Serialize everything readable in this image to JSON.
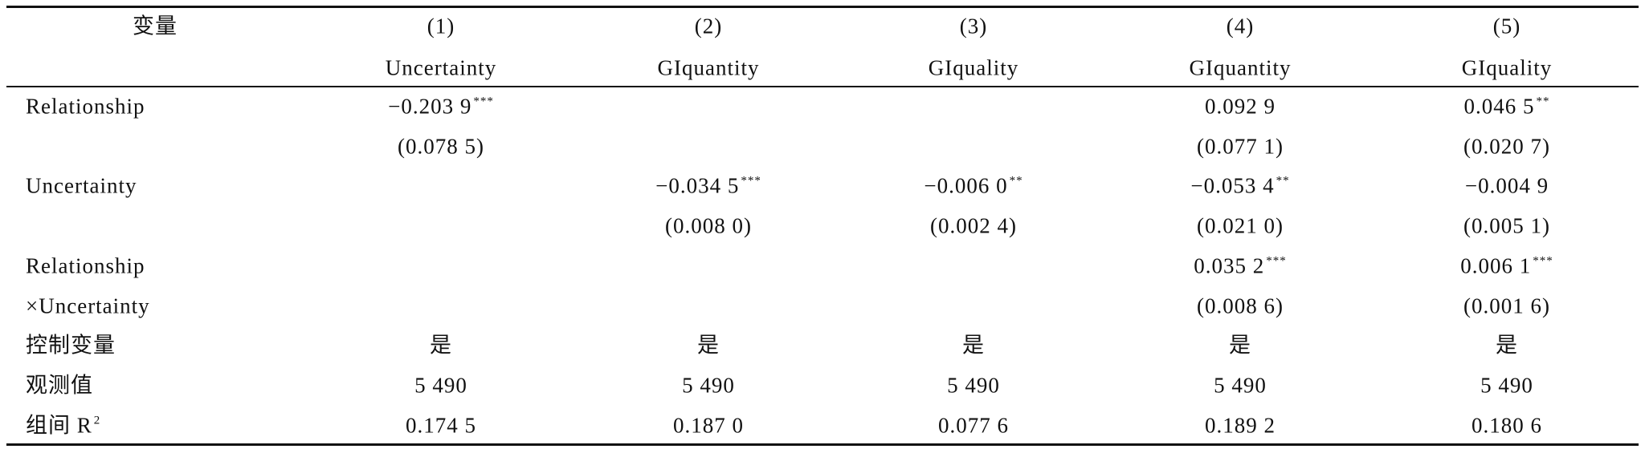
{
  "table": {
    "rows": [
      {
        "label": "变量",
        "cells": [
          "(1)",
          "(2)",
          "(3)",
          "(4)",
          "(5)"
        ]
      },
      {
        "label": null,
        "cells": [
          "Uncertainty",
          "GIquantity",
          "GIquality",
          "GIquantity",
          "GIquality"
        ]
      },
      {
        "label": "Relationship",
        "cells": [
          {
            "text": "−0.203 9",
            "sup": "***"
          },
          null,
          null,
          {
            "text": "0.092 9"
          },
          {
            "text": "0.046 5",
            "sup": "**"
          }
        ]
      },
      {
        "label": null,
        "cells": [
          "(0.078 5)",
          null,
          null,
          "(0.077 1)",
          "(0.020 7)"
        ]
      },
      {
        "label": "Uncertainty",
        "cells": [
          null,
          {
            "text": "−0.034 5",
            "sup": "***"
          },
          {
            "text": "−0.006 0",
            "sup": "**"
          },
          {
            "text": "−0.053 4",
            "sup": "**"
          },
          {
            "text": "−0.004 9"
          }
        ]
      },
      {
        "label": null,
        "cells": [
          null,
          "(0.008 0)",
          "(0.002 4)",
          "(0.021 0)",
          "(0.005 1)"
        ]
      },
      {
        "label": "Relationship",
        "cells": [
          null,
          null,
          null,
          {
            "text": "0.035 2",
            "sup": "***"
          },
          {
            "text": "0.006 1",
            "sup": "***"
          }
        ]
      },
      {
        "label": "×Uncertainty",
        "cells": [
          null,
          null,
          null,
          "(0.008 6)",
          "(0.001 6)"
        ]
      },
      {
        "label": "控制变量",
        "cells": [
          "是",
          "是",
          "是",
          "是",
          "是"
        ]
      },
      {
        "label": "观测值",
        "cells": [
          "5 490",
          "5 490",
          "5 490",
          "5 490",
          "5 490"
        ]
      },
      {
        "label": {
          "text": "组间 R",
          "sup": "2"
        },
        "cells": [
          "0.174 5",
          "0.187 0",
          "0.077 6",
          "0.189 2",
          "0.180 6"
        ]
      }
    ]
  }
}
